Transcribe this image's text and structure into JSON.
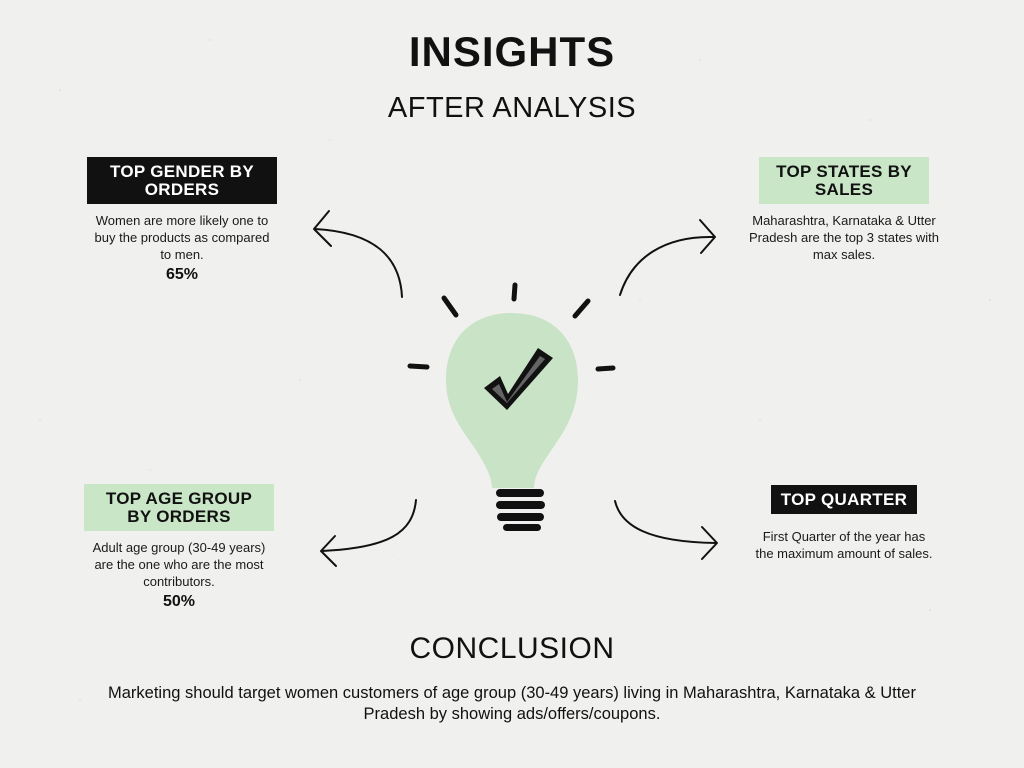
{
  "header": {
    "title": "INSIGHTS",
    "subtitle": "AFTER ANALYSIS"
  },
  "cards": {
    "gender": {
      "tag": "TOP GENDER BY ORDERS",
      "description": "Women are more likely one to buy the products as compared to men.",
      "percent": "65%"
    },
    "states": {
      "tag": "TOP STATES BY SALES",
      "description": "Maharashtra, Karnataka & Utter Pradesh are the top 3 states with max sales."
    },
    "age": {
      "tag": "TOP AGE GROUP BY ORDERS",
      "description": "Adult age group (30-49 years) are the one who are the most contributors.",
      "percent": "50%"
    },
    "quarter": {
      "tag": "TOP QUARTER",
      "description": "First Quarter of the year has the maximum amount of sales."
    }
  },
  "conclusion": {
    "title": "CONCLUSION",
    "text": "Marketing should target women customers of age group (30-49 years) living in Maharashtra, Karnataka & Utter Pradesh by showing ads/offers/coupons."
  },
  "colors": {
    "background": "#f0f0ee",
    "accent_green": "#c9e6c7",
    "bulb_green": "#c8e3c6",
    "dark": "#111111"
  },
  "icons": {
    "center": "lightbulb-check-icon",
    "connectors": "curved-arrow-icon"
  }
}
